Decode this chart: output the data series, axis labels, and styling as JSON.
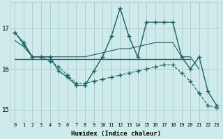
{
  "title": "",
  "xlabel": "Humidex (Indice chaleur)",
  "bg_color": "#ceeaea",
  "grid_color": "#aacfcf",
  "line_color": "#1a6060",
  "xlim": [
    -0.5,
    23.5
  ],
  "ylim": [
    14.7,
    17.65
  ],
  "yticks": [
    15,
    16,
    17
  ],
  "xticks": [
    0,
    1,
    2,
    3,
    4,
    5,
    6,
    7,
    8,
    9,
    10,
    11,
    12,
    13,
    14,
    15,
    16,
    17,
    18,
    19,
    20,
    21,
    22,
    23
  ],
  "series": {
    "s1": {
      "x": [
        0,
        1,
        2,
        3,
        4,
        5,
        6,
        7,
        8,
        9,
        10,
        11,
        12,
        13,
        14,
        15,
        16,
        17,
        18,
        19,
        20,
        21,
        22,
        23
      ],
      "y": [
        16.9,
        16.65,
        16.3,
        16.3,
        16.3,
        15.95,
        15.8,
        15.6,
        15.6,
        15.95,
        16.3,
        16.8,
        17.5,
        16.8,
        16.3,
        17.15,
        17.15,
        17.15,
        17.15,
        16.3,
        16.0,
        16.3,
        15.45,
        15.1
      ],
      "marker": "+",
      "lw": 1.0,
      "ls": "-"
    },
    "s2": {
      "x": [
        0,
        1,
        2,
        3,
        4,
        5,
        6,
        7,
        8,
        9,
        10,
        11,
        12,
        13,
        14,
        15,
        16,
        17,
        18,
        19,
        20,
        21
      ],
      "y": [
        16.7,
        16.55,
        16.3,
        16.3,
        16.3,
        16.3,
        16.3,
        16.3,
        16.3,
        16.35,
        16.4,
        16.45,
        16.5,
        16.5,
        16.55,
        16.6,
        16.65,
        16.65,
        16.65,
        16.3,
        16.3,
        16.0
      ],
      "marker": null,
      "lw": 0.8,
      "ls": "-"
    },
    "s3": {
      "x": [
        0,
        1,
        2,
        3,
        4,
        5,
        6,
        7,
        8,
        9,
        10,
        11,
        12,
        13,
        14,
        15,
        16,
        17,
        18,
        19,
        20
      ],
      "y": [
        16.25,
        16.25,
        16.25,
        16.25,
        16.25,
        16.25,
        16.25,
        16.25,
        16.25,
        16.25,
        16.25,
        16.25,
        16.25,
        16.25,
        16.25,
        16.25,
        16.25,
        16.25,
        16.25,
        16.25,
        16.25
      ],
      "marker": null,
      "lw": 1.0,
      "ls": "-"
    },
    "s4": {
      "x": [
        0,
        1,
        2,
        3,
        4,
        5,
        6,
        7,
        8,
        9,
        10,
        11,
        12,
        13,
        14,
        15,
        16,
        17,
        18,
        19,
        20,
        21,
        22,
        23
      ],
      "y": [
        16.9,
        16.6,
        16.3,
        16.3,
        16.2,
        16.05,
        15.85,
        15.65,
        15.65,
        15.7,
        15.75,
        15.8,
        15.85,
        15.9,
        15.95,
        16.0,
        16.05,
        16.1,
        16.1,
        15.9,
        15.7,
        15.4,
        15.1,
        15.05
      ],
      "marker": "+",
      "lw": 0.8,
      "ls": "--"
    }
  }
}
